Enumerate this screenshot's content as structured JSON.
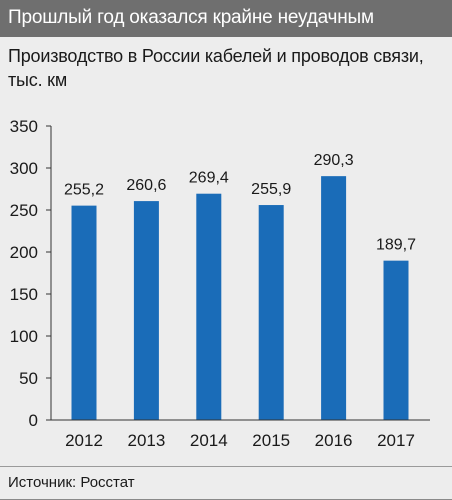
{
  "header": {
    "title": "Прошлый год оказался крайне неудачным"
  },
  "subtitle": "Производство в России кабелей и проводов связи, тыс. км",
  "source": "Источник: Росстат",
  "colors": {
    "header_bg": "#6f6f6f",
    "panel_bg": "#ededed",
    "bar": "#1a6cb8",
    "axis": "#333333"
  },
  "chart_data": {
    "type": "bar",
    "categories": [
      "2012",
      "2013",
      "2014",
      "2015",
      "2016",
      "2017"
    ],
    "values": [
      255.2,
      260.6,
      269.4,
      255.9,
      290.3,
      189.7
    ],
    "value_labels": [
      "255,2",
      "260,6",
      "269,4",
      "255,9",
      "290,3",
      "189,7"
    ],
    "yticks": [
      0,
      50,
      100,
      150,
      200,
      250,
      300,
      350
    ],
    "ylim": [
      0,
      350
    ],
    "grid": false,
    "legend": "none"
  }
}
